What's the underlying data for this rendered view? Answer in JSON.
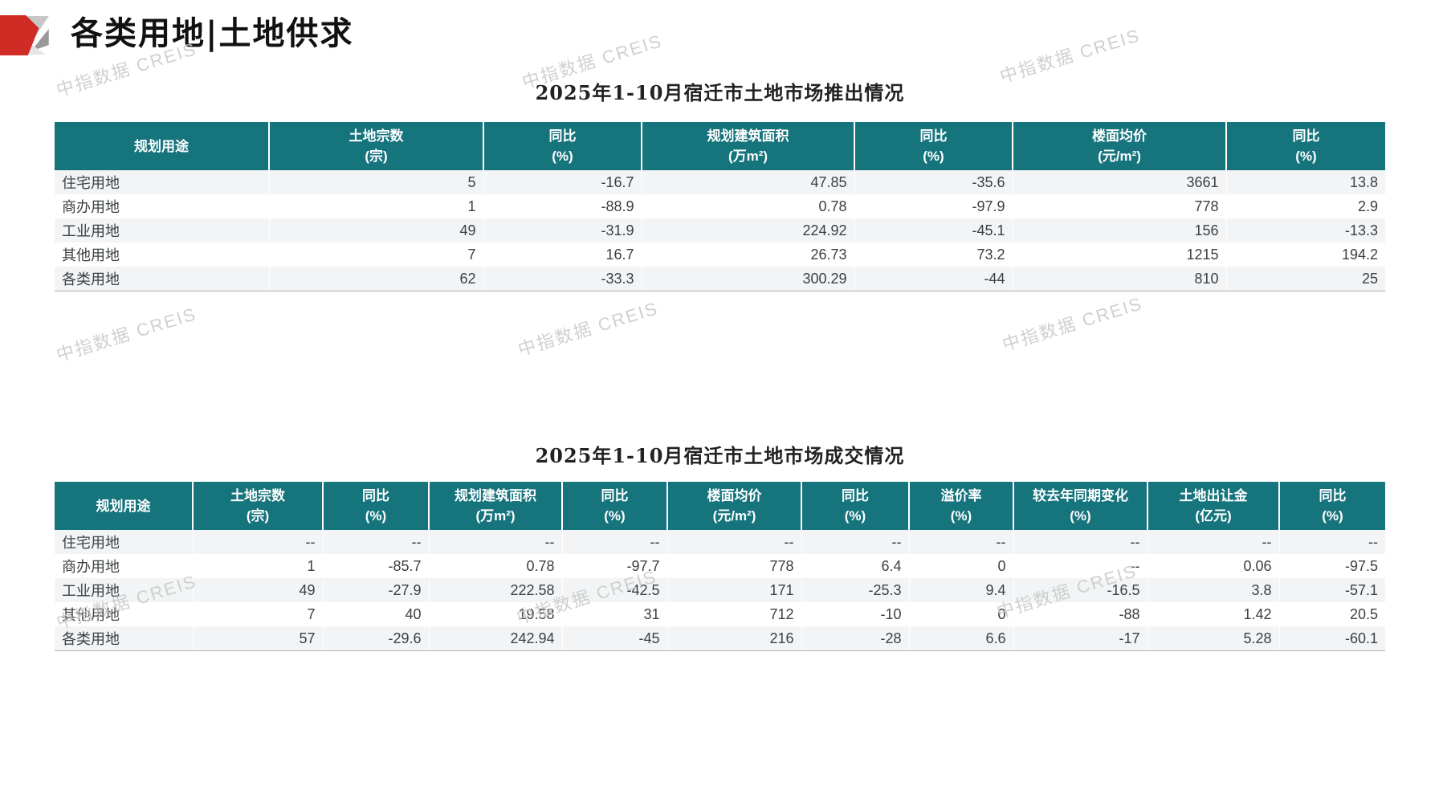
{
  "page": {
    "title": "各类用地|土地供求",
    "watermark": "中指数据 CREIS"
  },
  "colors": {
    "header_teal": "#16747D",
    "row_alt_gray": "#F2F4F6",
    "logo_red": "#D02B24",
    "watermark_gray": "#CBCBCB",
    "body_text": "#3C4043"
  },
  "table1": {
    "title": "2025年1-10月宿迁市土地市场推出情况",
    "columns": [
      {
        "label": "规划用途",
        "unit": ""
      },
      {
        "label": "土地宗数",
        "unit": "(宗)"
      },
      {
        "label": "同比",
        "unit": "(%)"
      },
      {
        "label": "规划建筑面积",
        "unit": "(万m²)"
      },
      {
        "label": "同比",
        "unit": "(%)"
      },
      {
        "label": "楼面均价",
        "unit": "(元/m²)"
      },
      {
        "label": "同比",
        "unit": "(%)"
      }
    ],
    "rows": [
      [
        "住宅用地",
        "5",
        "-16.7",
        "47.85",
        "-35.6",
        "3661",
        "13.8"
      ],
      [
        "商办用地",
        "1",
        "-88.9",
        "0.78",
        "-97.9",
        "778",
        "2.9"
      ],
      [
        "工业用地",
        "49",
        "-31.9",
        "224.92",
        "-45.1",
        "156",
        "-13.3"
      ],
      [
        "其他用地",
        "7",
        "16.7",
        "26.73",
        "73.2",
        "1215",
        "194.2"
      ],
      [
        "各类用地",
        "62",
        "-33.3",
        "300.29",
        "-44",
        "810",
        "25"
      ]
    ]
  },
  "table2": {
    "title": "2025年1-10月宿迁市土地市场成交情况",
    "columns": [
      {
        "label": "规划用途",
        "unit": ""
      },
      {
        "label": "土地宗数",
        "unit": "(宗)"
      },
      {
        "label": "同比",
        "unit": "(%)"
      },
      {
        "label": "规划建筑面积",
        "unit": "(万m²)"
      },
      {
        "label": "同比",
        "unit": "(%)"
      },
      {
        "label": "楼面均价",
        "unit": "(元/m²)"
      },
      {
        "label": "同比",
        "unit": "(%)"
      },
      {
        "label": "溢价率",
        "unit": "(%)"
      },
      {
        "label": "较去年同期变化",
        "unit": "(%)"
      },
      {
        "label": "土地出让金",
        "unit": "(亿元)"
      },
      {
        "label": "同比",
        "unit": "(%)"
      }
    ],
    "rows": [
      [
        "住宅用地",
        "--",
        "--",
        "--",
        "--",
        "--",
        "--",
        "--",
        "--",
        "--",
        "--"
      ],
      [
        "商办用地",
        "1",
        "-85.7",
        "0.78",
        "-97.7",
        "778",
        "6.4",
        "0",
        "--",
        "0.06",
        "-97.5"
      ],
      [
        "工业用地",
        "49",
        "-27.9",
        "222.58",
        "-42.5",
        "171",
        "-25.3",
        "9.4",
        "-16.5",
        "3.8",
        "-57.1"
      ],
      [
        "其他用地",
        "7",
        "40",
        "19.58",
        "31",
        "712",
        "-10",
        "0",
        "-88",
        "1.42",
        "20.5"
      ],
      [
        "各类用地",
        "57",
        "-29.6",
        "242.94",
        "-45",
        "216",
        "-28",
        "6.6",
        "-17",
        "5.28",
        "-60.1"
      ]
    ]
  }
}
